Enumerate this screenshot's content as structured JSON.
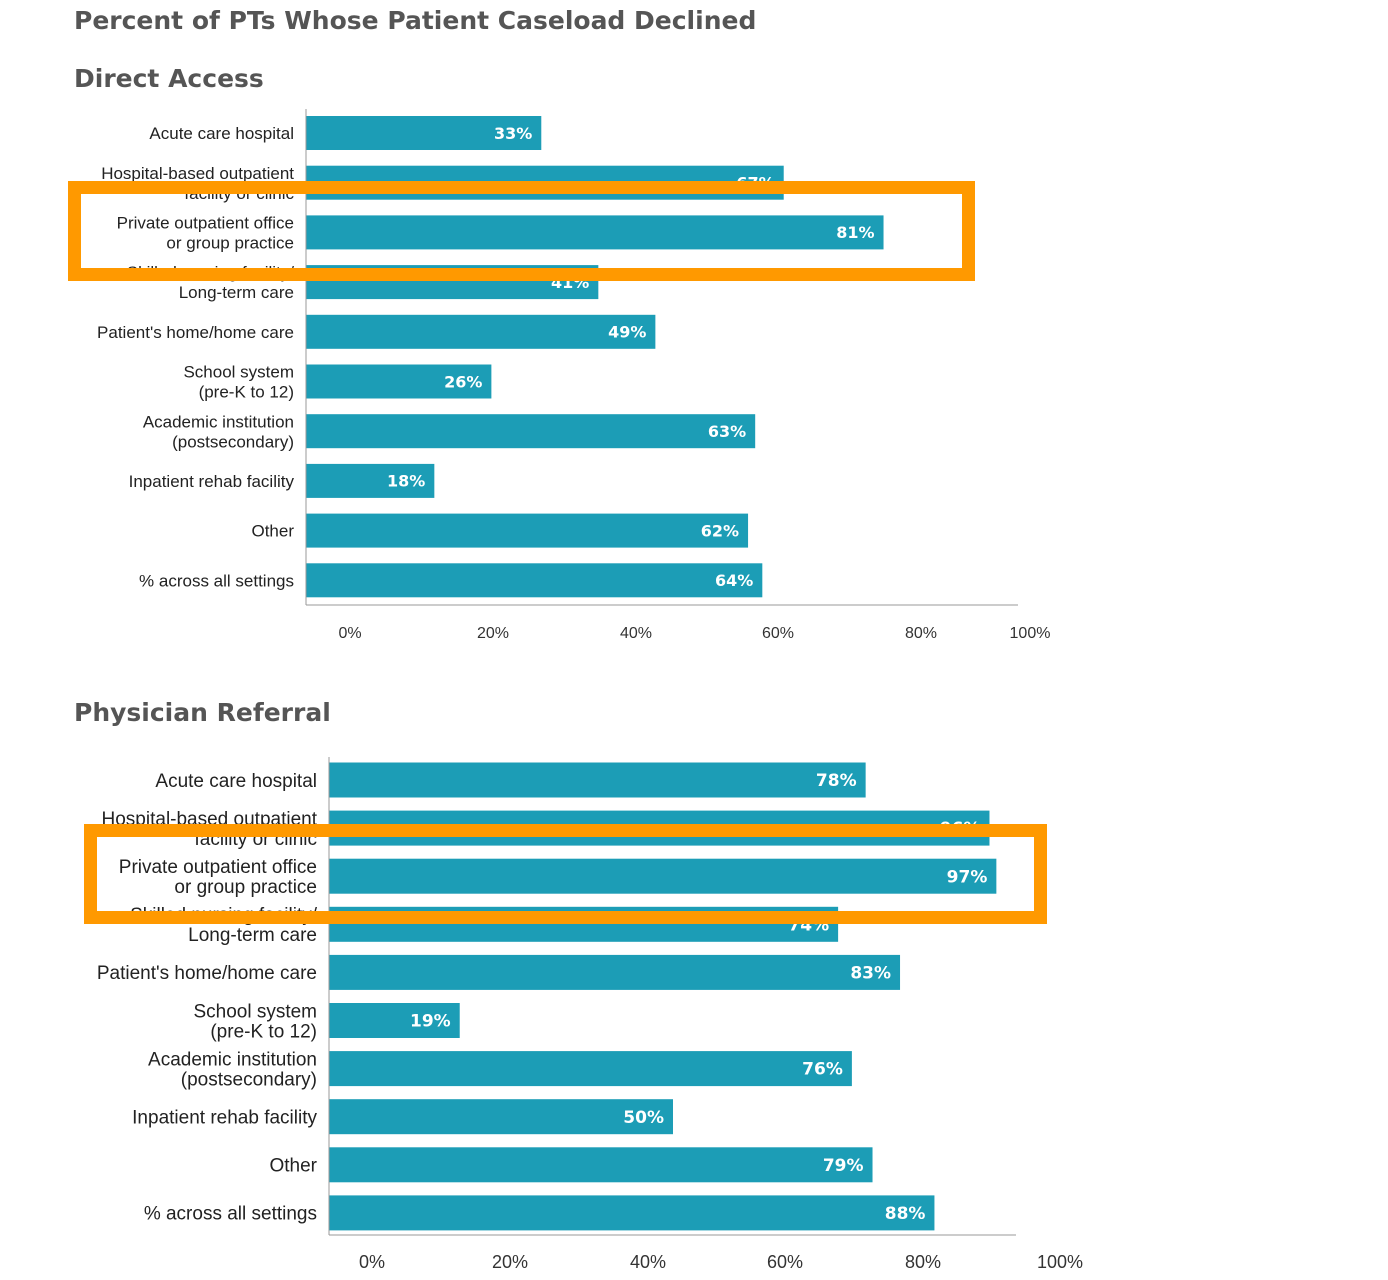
{
  "title": "Percent of PTs Whose Patient Caseload Declined",
  "highlight_color": "#ff9900",
  "bar_color": "#1c9db6",
  "chart_data": [
    {
      "type": "bar",
      "orientation": "horizontal",
      "title": "Direct Access",
      "categories": [
        [
          "Acute care hospital"
        ],
        [
          "Hospital-based outpatient",
          "facility or clinic"
        ],
        [
          "Private outpatient office",
          "or group practice"
        ],
        [
          "Skilled nursing facility/",
          "Long-term care"
        ],
        [
          "Patient's home/home care"
        ],
        [
          "School system",
          "(pre-K to 12)"
        ],
        [
          "Academic institution",
          "(postsecondary)"
        ],
        [
          "Inpatient rehab facility"
        ],
        [
          "Other"
        ],
        [
          "% across all settings"
        ]
      ],
      "values": [
        33,
        67,
        81,
        41,
        49,
        26,
        63,
        18,
        62,
        64
      ],
      "value_labels": [
        "33%",
        "67%",
        "81%",
        "41%",
        "49%",
        "26%",
        "63%",
        "18%",
        "62%",
        "64%"
      ],
      "xlim": [
        0,
        100
      ],
      "xticks": [
        "0%",
        "20%",
        "40%",
        "60%",
        "80%",
        "100%"
      ],
      "highlighted_category_index": 2
    },
    {
      "type": "bar",
      "orientation": "horizontal",
      "title": "Physician Referral",
      "categories": [
        [
          "Acute care hospital"
        ],
        [
          "Hospital-based outpatient",
          "facility or clinic"
        ],
        [
          "Private outpatient office",
          "or group practice"
        ],
        [
          "Skilled nursing facility/",
          "Long-term care"
        ],
        [
          "Patient's home/home care"
        ],
        [
          "School system",
          "(pre-K to 12)"
        ],
        [
          "Academic institution",
          "(postsecondary)"
        ],
        [
          "Inpatient rehab facility"
        ],
        [
          "Other"
        ],
        [
          "% across all settings"
        ]
      ],
      "values": [
        78,
        96,
        97,
        74,
        83,
        19,
        76,
        50,
        79,
        88
      ],
      "value_labels": [
        "78%",
        "96%",
        "97%",
        "74%",
        "83%",
        "19%",
        "76%",
        "50%",
        "79%",
        "88%"
      ],
      "xlim": [
        0,
        100
      ],
      "xticks": [
        "0%",
        "20%",
        "40%",
        "60%",
        "80%",
        "100%"
      ],
      "highlighted_category_index": 2
    }
  ]
}
